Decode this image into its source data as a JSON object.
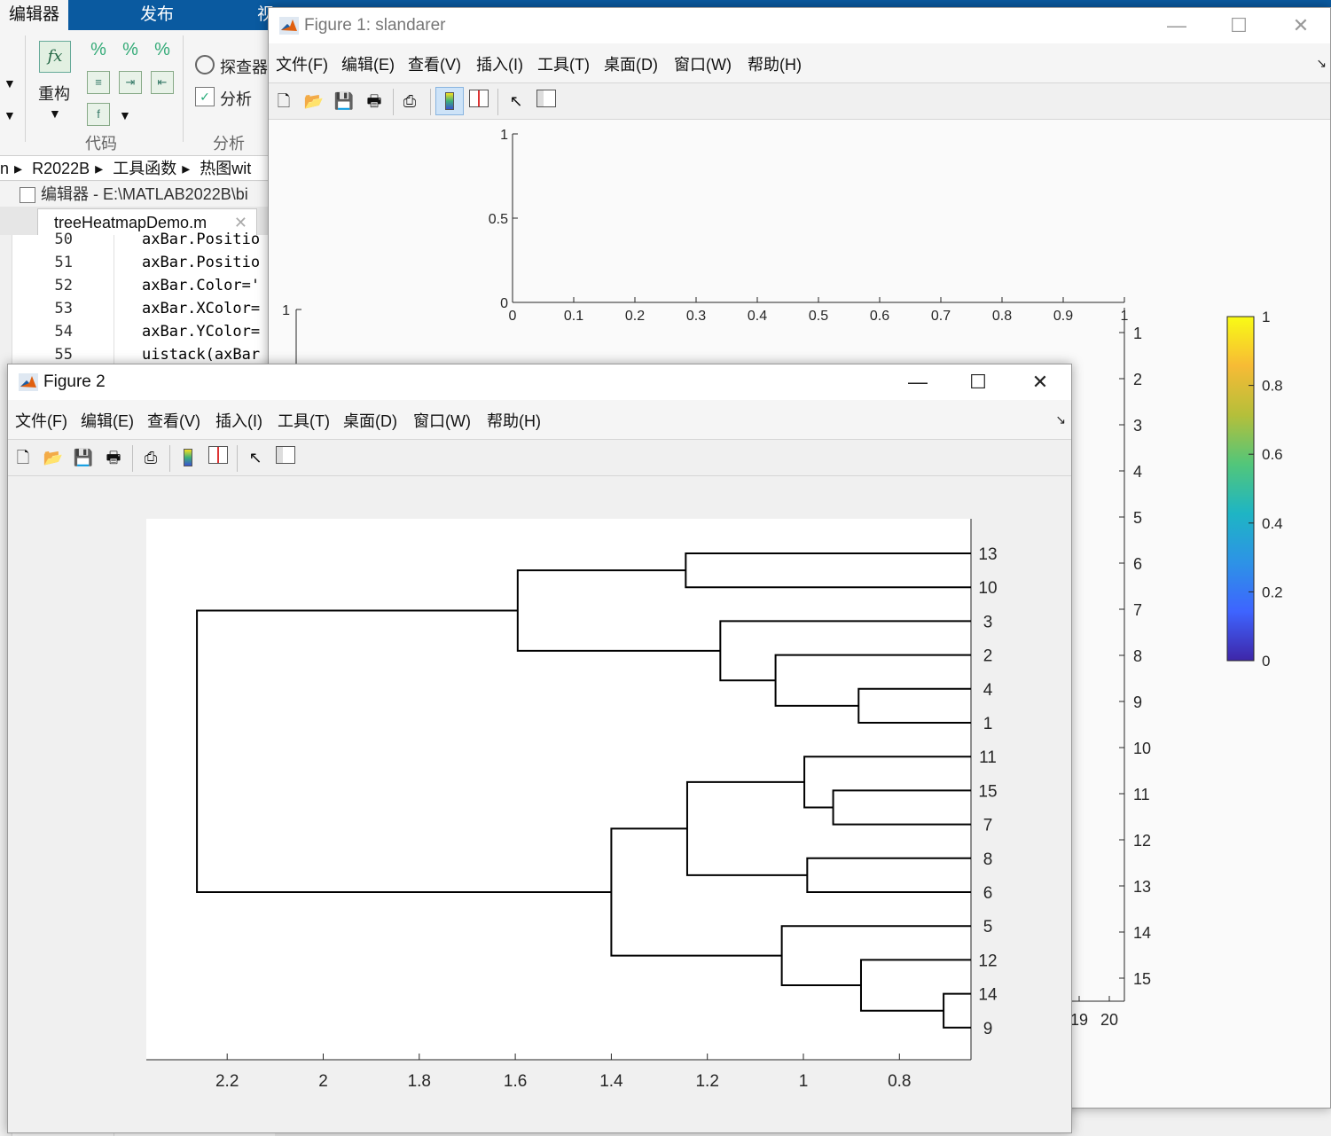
{
  "editor": {
    "ribbon_tabs": [
      "编辑器",
      "发布",
      "视"
    ],
    "ribbon": {
      "refactor_label": "重构",
      "explorer_label": "探查器",
      "analyze_label": "分析",
      "code_group": "代码",
      "analyze_group": "分析"
    },
    "breadcrumb": [
      "n",
      "R2022B",
      "工具函数",
      "热图wit"
    ],
    "title": "编辑器 - E:\\MATLAB2022B\\bi",
    "tab_name": "treeHeatmapDemo.m",
    "code_lines": [
      {
        "num": "50",
        "text": "axBar.Positio"
      },
      {
        "num": "51",
        "text": "axBar.Positio"
      },
      {
        "num": "52",
        "text": "axBar.Color='"
      },
      {
        "num": "53",
        "text": "axBar.XColor="
      },
      {
        "num": "54",
        "text": "axBar.YColor="
      },
      {
        "num": "55",
        "text": "uistack(axBar"
      }
    ]
  },
  "figure1": {
    "title": "Figure 1: slandarer",
    "menu": [
      "文件(F)",
      "编辑(E)",
      "查看(V)",
      "插入(I)",
      "工具(T)",
      "桌面(D)",
      "窗口(W)",
      "帮助(H)"
    ],
    "top_axes": {
      "x_ticks": [
        "0",
        "0.1",
        "0.2",
        "0.3",
        "0.4",
        "0.5",
        "0.6",
        "0.7",
        "0.8",
        "0.9",
        "1"
      ],
      "y_ticks": [
        "0",
        "0.5",
        "1"
      ]
    },
    "left_axis_top_label": "1",
    "right_axis_ticks": [
      "1",
      "2",
      "3",
      "4",
      "5",
      "6",
      "7",
      "8",
      "9",
      "10",
      "11",
      "12",
      "13",
      "14",
      "15"
    ],
    "bottom_ticks_visible": [
      "19",
      "20"
    ],
    "colorbar": {
      "ticks": [
        "1",
        "0.8",
        "0.6",
        "0.4",
        "0.2",
        "0"
      ],
      "colors": [
        "#3e26a8",
        "#3e64ff",
        "#2d93e6",
        "#1eb5c4",
        "#52c67a",
        "#b5bf3a",
        "#f7bb35",
        "#f9fb15"
      ]
    }
  },
  "figure2": {
    "title": "Figure 2",
    "menu": [
      "文件(F)",
      "编辑(E)",
      "查看(V)",
      "插入(I)",
      "工具(T)",
      "桌面(D)",
      "窗口(W)",
      "帮助(H)"
    ],
    "chart_data": {
      "type": "dendrogram",
      "orientation": "left",
      "leaf_order": [
        "13",
        "10",
        "3",
        "2",
        "4",
        "1",
        "11",
        "15",
        "7",
        "8",
        "6",
        "5",
        "12",
        "14",
        "9"
      ],
      "x_ticks": [
        "2.2",
        "2",
        "1.8",
        "1.6",
        "1.4",
        "1.2",
        "1",
        "0.8"
      ],
      "xlim": [
        0.6,
        2.3
      ],
      "merges": [
        {
          "left": 0,
          "right": 1,
          "height": 1.245
        },
        {
          "left": 4,
          "right": 5,
          "height": 0.885
        },
        {
          "left": 3,
          "right": "m2",
          "height": 1.058
        },
        {
          "left": 2,
          "right": "m3",
          "height": 1.173
        },
        {
          "left": "m1",
          "right": "m4",
          "height": 1.595
        },
        {
          "left": 7,
          "right": 8,
          "height": 0.938
        },
        {
          "left": 6,
          "right": "m6",
          "height": 0.998
        },
        {
          "left": 9,
          "right": 10,
          "height": 0.992
        },
        {
          "left": "m7",
          "right": "m8",
          "height": 1.242
        },
        {
          "left": 13,
          "right": 14,
          "height": 0.708
        },
        {
          "left": 12,
          "right": "m10",
          "height": 0.88
        },
        {
          "left": 11,
          "right": "m11",
          "height": 1.045
        },
        {
          "left": "m9",
          "right": "m12",
          "height": 1.4
        },
        {
          "left": "m5",
          "right": "m13",
          "height": 2.263
        }
      ]
    }
  }
}
